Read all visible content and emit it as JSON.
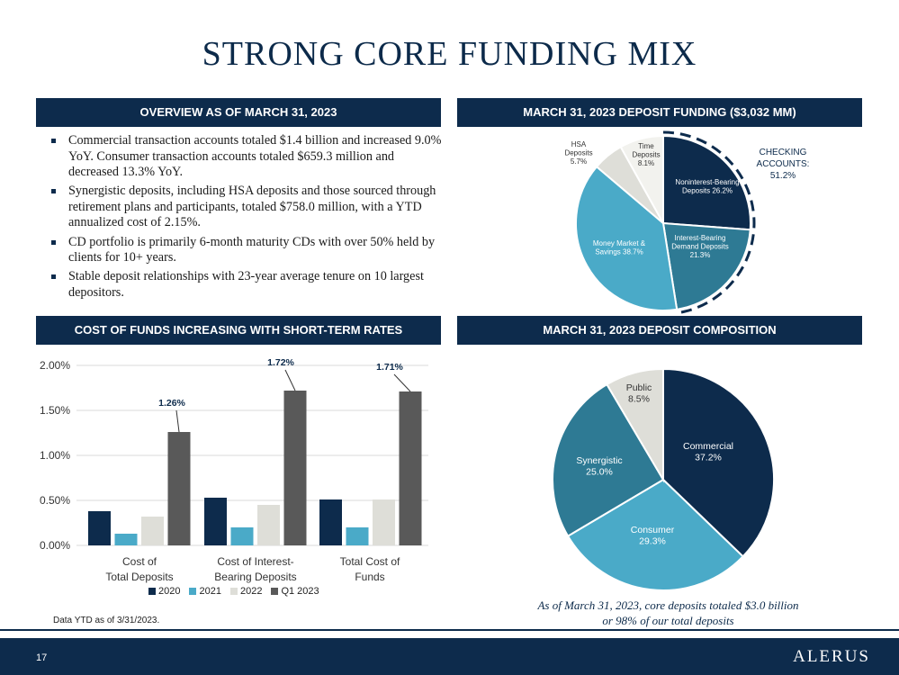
{
  "title": "STRONG CORE FUNDING MIX",
  "overview": {
    "header": "OVERVIEW AS OF MARCH 31, 2023",
    "bullets": [
      "Commercial transaction accounts totaled $1.4 billion and increased 9.0% YoY. Consumer transaction accounts totaled $659.3 million and decreased 13.3% YoY.",
      "Synergistic deposits, including HSA deposits and those sourced through retirement plans and participants, totaled $758.0 million, with a YTD annualized cost of 2.15%.",
      "CD portfolio is primarily 6-month maturity CDs with over 50% held by clients for 10+ years.",
      "Stable deposit relationships with 23-year average tenure on 10 largest depositors."
    ]
  },
  "funding": {
    "header": "MARCH 31, 2023 DEPOSIT FUNDING ($3,032 MM)",
    "checking_label_1": "CHECKING",
    "checking_label_2": "ACCOUNTS:",
    "checking_value": "51.2%"
  },
  "cost": {
    "header": "COST OF FUNDS INCREASING WITH SHORT-TERM RATES",
    "note": "Data YTD as of 3/31/2023."
  },
  "composition": {
    "header": "MARCH 31, 2023 DEPOSIT COMPOSITION",
    "caption_1": "As of March 31, 2023, core deposits totaled $3.0 billion",
    "caption_2": "or 98% of our total deposits"
  },
  "footer": {
    "page": "17",
    "logo": "ALERUS"
  },
  "chart_data": [
    {
      "type": "bar",
      "categories": [
        "Cost of Total Deposits",
        "Cost of Interest-Bearing Deposits",
        "Total Cost of Funds"
      ],
      "category_lines": [
        [
          "Cost of",
          "Total Deposits"
        ],
        [
          "Cost of Interest-",
          "Bearing Deposits"
        ],
        [
          "Total Cost of",
          "Funds"
        ]
      ],
      "series": [
        {
          "name": "2020",
          "values": [
            0.38,
            0.53,
            0.51
          ],
          "color": "#0d2b4c"
        },
        {
          "name": "2021",
          "values": [
            0.13,
            0.2,
            0.2
          ],
          "color": "#4aaac8"
        },
        {
          "name": "2022",
          "values": [
            0.32,
            0.45,
            0.51
          ],
          "color": "#deded8"
        },
        {
          "name": "Q1 2023",
          "values": [
            1.26,
            1.72,
            1.71
          ],
          "color": "#595959"
        }
      ],
      "data_labels": [
        "1.26%",
        "1.72%",
        "1.71%"
      ],
      "yticks": [
        "0.00%",
        "0.50%",
        "1.00%",
        "1.50%",
        "2.00%"
      ],
      "ylim": [
        0,
        2.0
      ],
      "grid": true,
      "legend": "bottom"
    },
    {
      "type": "pie",
      "slices": [
        {
          "label_lines": [
            "Noninterest-Bearing",
            "Deposits 26.2%"
          ],
          "value": 26.2,
          "color": "#0d2b4c",
          "text_color": "#ffffff"
        },
        {
          "label_lines": [
            "Interest-Bearing",
            "Demand Deposits",
            "21.3%"
          ],
          "value": 21.3,
          "color": "#2e7a94",
          "text_color": "#ffffff"
        },
        {
          "label_lines": [
            "Money Market &",
            "Savings 38.7%"
          ],
          "value": 38.7,
          "color": "#4aaac8",
          "text_color": "#ffffff"
        },
        {
          "label_lines": [
            "HSA",
            "Deposits",
            "5.7%"
          ],
          "value": 5.7,
          "color": "#deded8",
          "text_color": "#333333"
        },
        {
          "label_lines": [
            "Time",
            "Deposits",
            "8.1%"
          ],
          "value": 8.1,
          "color": "#f2f2ee",
          "text_color": "#333333"
        }
      ]
    },
    {
      "type": "pie",
      "slices": [
        {
          "label_lines": [
            "Commercial",
            "37.2%"
          ],
          "value": 37.2,
          "color": "#0d2b4c",
          "text_color": "#ffffff"
        },
        {
          "label_lines": [
            "Consumer",
            "29.3%"
          ],
          "value": 29.3,
          "color": "#4aaac8",
          "text_color": "#ffffff"
        },
        {
          "label_lines": [
            "Synergistic",
            "25.0%"
          ],
          "value": 25.0,
          "color": "#2e7a94",
          "text_color": "#ffffff"
        },
        {
          "label_lines": [
            "Public",
            "8.5%"
          ],
          "value": 8.5,
          "color": "#deded8",
          "text_color": "#333333"
        }
      ]
    }
  ]
}
